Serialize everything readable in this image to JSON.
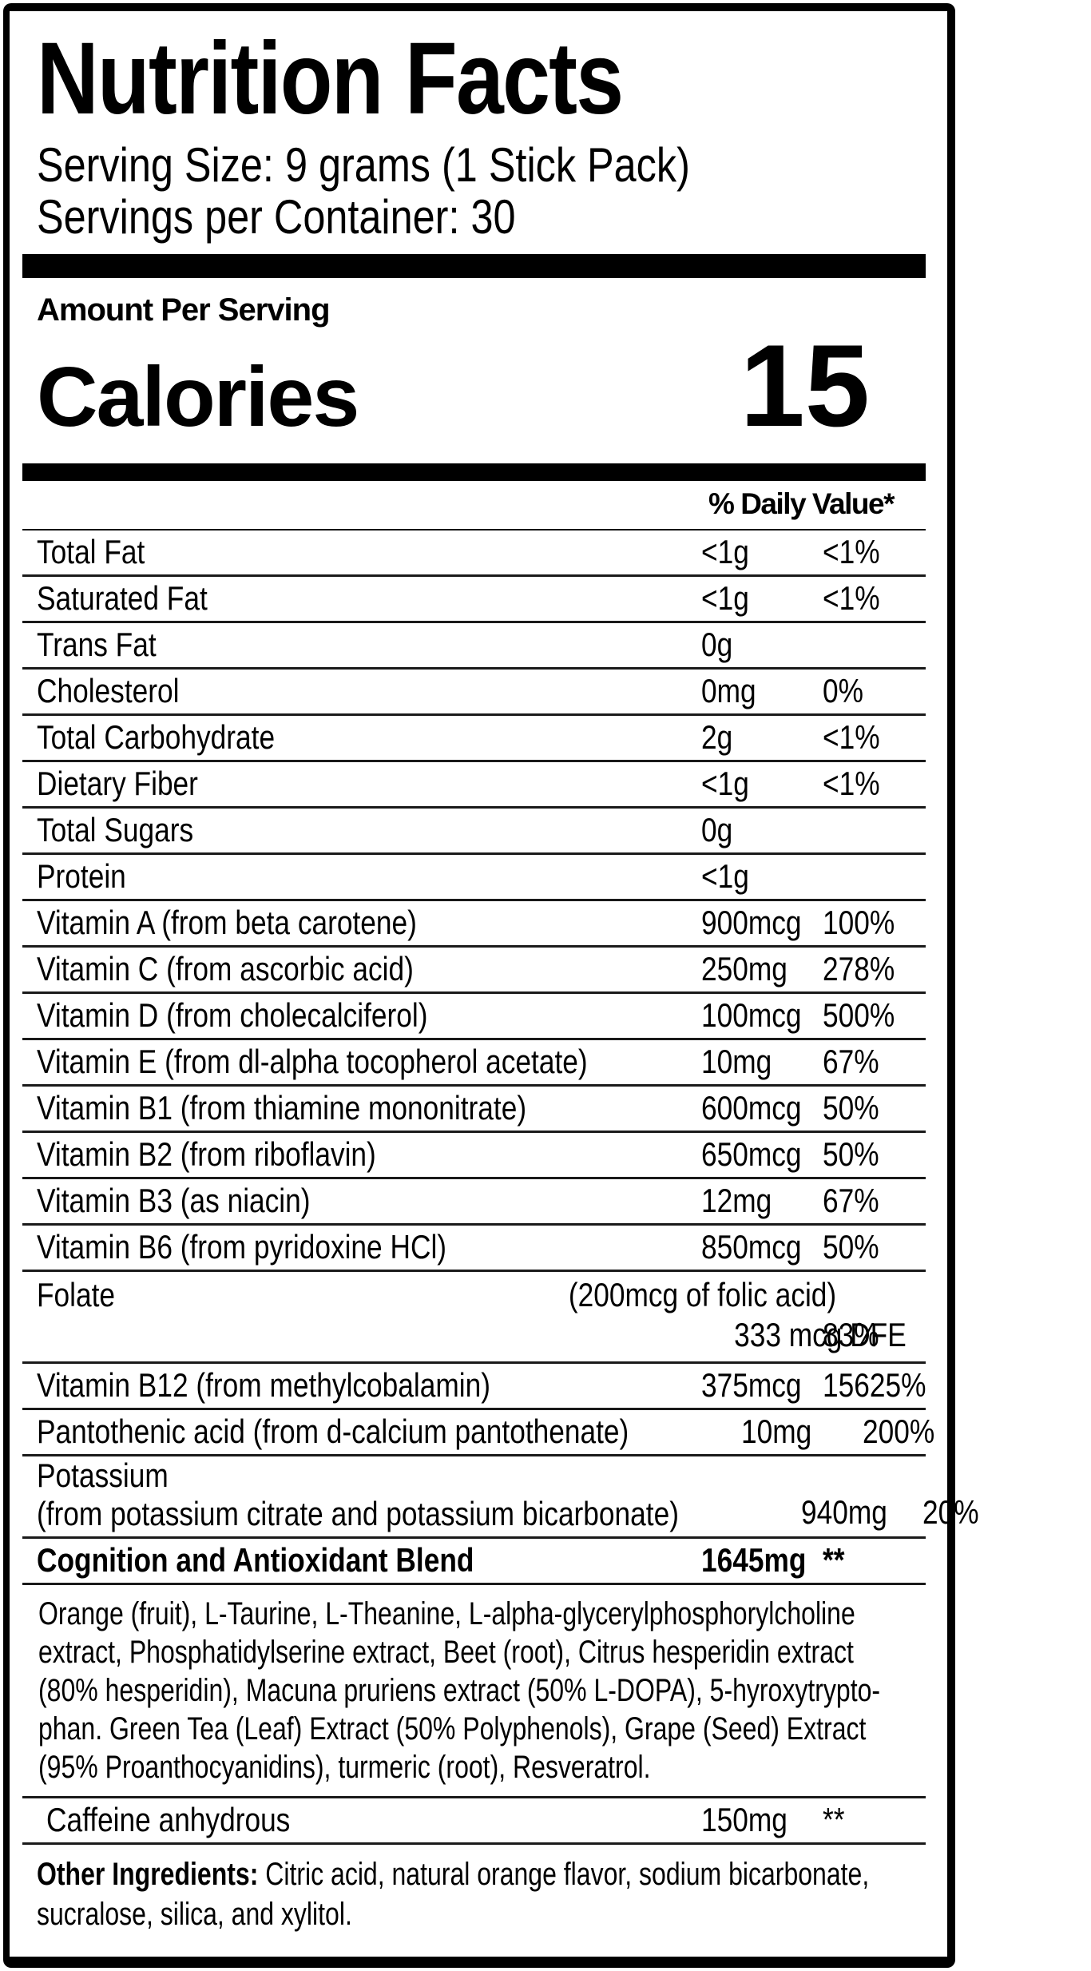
{
  "colors": {
    "ink": "#000000",
    "paper": "#ffffff"
  },
  "nutrition": {
    "title": "Nutrition Facts",
    "serving_size": "Serving Size: 9 grams (1 Stick Pack)",
    "servings_per_container": "Servings per Container: 30",
    "amount_per_serving": "Amount Per Serving",
    "calories": {
      "label": "Calories",
      "value": "15"
    },
    "daily_value_header": "% Daily Value*",
    "rows": [
      {
        "name": "Total Fat",
        "amount": "<1g",
        "dv": "<1%"
      },
      {
        "name": "Saturated Fat",
        "amount": "<1g",
        "dv": "<1%"
      },
      {
        "name": "Trans Fat",
        "amount": "0g",
        "dv": ""
      },
      {
        "name": "Cholesterol",
        "amount": "0mg",
        "dv": "0%"
      },
      {
        "name": "Total Carbohydrate",
        "amount": "2g",
        "dv": "<1%"
      },
      {
        "name": "Dietary Fiber",
        "amount": "<1g",
        "dv": "<1%"
      },
      {
        "name": "Total Sugars",
        "amount": "0g",
        "dv": ""
      },
      {
        "name": "Protein",
        "amount": "<1g",
        "dv": ""
      },
      {
        "name": "Vitamin A (from beta carotene)",
        "amount": "900mcg",
        "dv": "100%"
      },
      {
        "name": "Vitamin C (from ascorbic acid)",
        "amount": "250mg",
        "dv": "278%"
      },
      {
        "name": "Vitamin D (from cholecalciferol)",
        "amount": "100mcg",
        "dv": "500%"
      },
      {
        "name": "Vitamin E (from dl-alpha tocopherol acetate)",
        "amount": "10mg",
        "dv": "67%"
      },
      {
        "name": "Vitamin B1 (from thiamine mononitrate)",
        "amount": "600mcg",
        "dv": "50%"
      },
      {
        "name": "Vitamin B2 (from riboflavin)",
        "amount": "650mcg",
        "dv": "50%"
      },
      {
        "name": "Vitamin B3 (as niacin)",
        "amount": "12mg",
        "dv": "67%"
      },
      {
        "name": "Vitamin B6 (from pyridoxine HCl)",
        "amount": "850mcg",
        "dv": "50%"
      },
      {
        "name": "Vitamin B12 (from methylcobalamin)",
        "amount": "375mcg",
        "dv": "15625%"
      },
      {
        "name": "Pantothenic acid (from d-calcium pantothenate)",
        "amount": "10mg",
        "dv": "200%"
      }
    ],
    "folate": {
      "name": "Folate",
      "note": "(200mcg of folic acid)",
      "amount": "333 mcg DFE",
      "dv": "83%"
    },
    "potassium": {
      "name": "Potassium",
      "note": "(from potassium citrate and potassium bicarbonate)",
      "amount": "940mg",
      "dv": "20%"
    },
    "blend": {
      "name": "Cognition and Antioxidant Blend",
      "amount": "1645mg",
      "dv": "**"
    },
    "blend_ingredients_lines": [
      "Orange (fruit), L-Taurine, L-Theanine, L-alpha-glycerylphosphorylcholine",
      "extract, Phosphatidylserine extract, Beet (root), Citrus hesperidin extract",
      "(80% hesperidin), Macuna pruriens extract (50% L-DOPA), 5-hyroxytrypto-",
      "phan. Green Tea (Leaf) Extract (50% Polyphenols), Grape (Seed) Extract",
      "(95% Proanthocyanidins), turmeric (root), Resveratrol."
    ],
    "caffeine": {
      "name": "Caffeine anhydrous",
      "amount": "150mg",
      "dv": "**"
    },
    "other_ingredients": {
      "label": "Other Ingredients:",
      "text": " Citric acid, natural orange flavor, sodium bicarbonate, sucralose, silica, and xylitol."
    }
  }
}
